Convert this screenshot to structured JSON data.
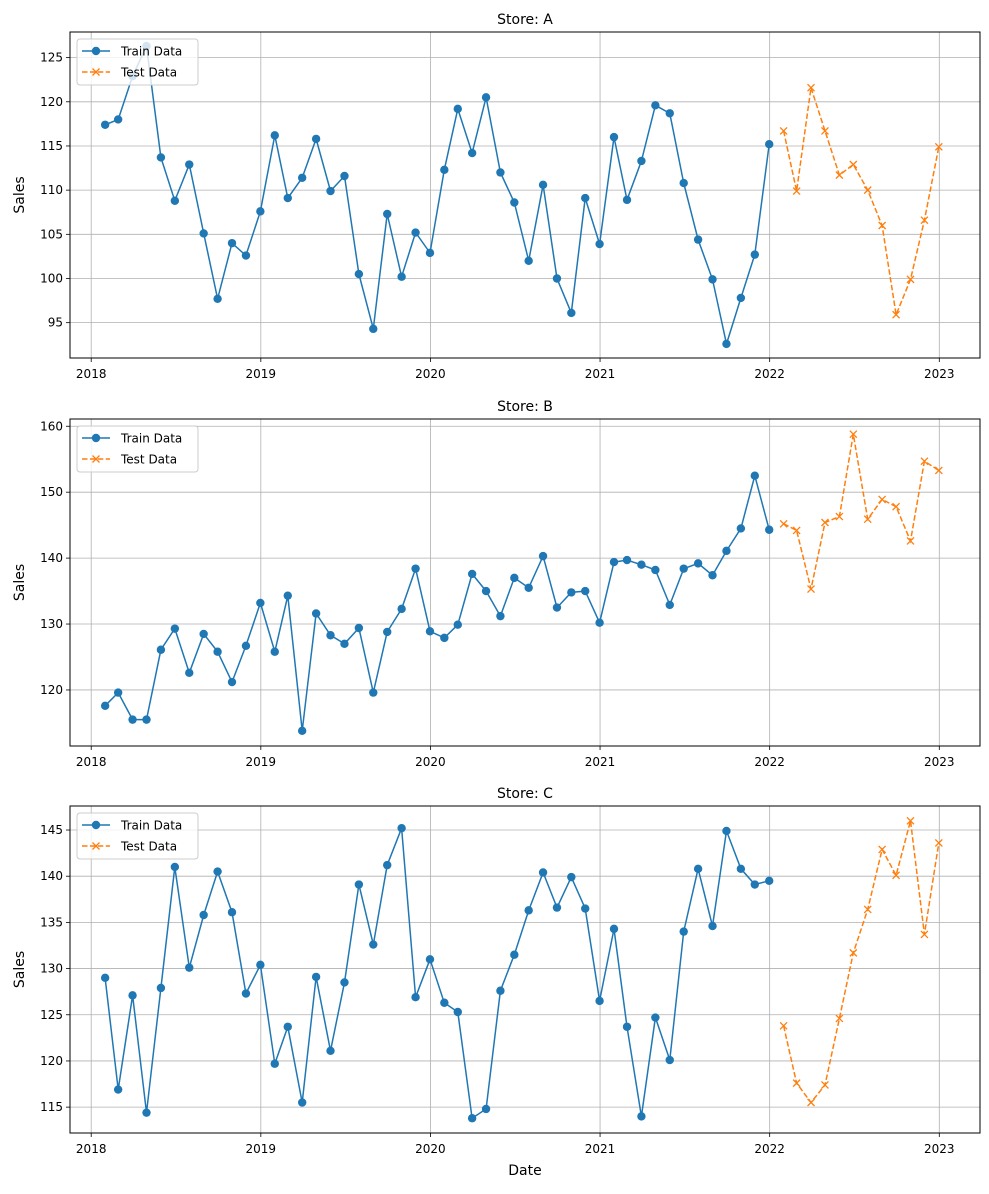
{
  "chart_data": [
    {
      "type": "line",
      "title": "Store: A",
      "xlabel": "",
      "ylabel": "Sales",
      "xlim": [
        2017.875,
        2023.24
      ],
      "ylim": [
        91.0,
        127.9
      ],
      "yticks": [
        95,
        100,
        105,
        110,
        115,
        120,
        125
      ],
      "xticks": [
        2018,
        2019,
        2020,
        2021,
        2022,
        2023
      ],
      "grid": true,
      "legend": {
        "position": "top-left",
        "entries": [
          "Train Data",
          "Test Data"
        ]
      },
      "series": [
        {
          "name": "Train Data",
          "style": "solid-circle",
          "color": "#1f77b4",
          "x_start": "2018-01-31",
          "frequency": "monthly",
          "values": [
            117.4,
            118.0,
            122.9,
            126.3,
            113.7,
            108.8,
            112.9,
            105.1,
            97.7,
            104.0,
            102.6,
            107.6,
            116.2,
            109.1,
            111.4,
            115.8,
            109.9,
            111.6,
            100.5,
            94.3,
            107.3,
            100.2,
            105.2,
            102.9,
            112.3,
            119.2,
            114.2,
            120.5,
            112.0,
            108.6,
            102.0,
            110.6,
            100.0,
            96.1,
            109.1,
            103.9,
            116.0,
            108.9,
            113.3,
            119.6,
            118.7,
            110.8,
            104.4,
            99.9,
            92.6,
            97.8,
            102.7,
            115.2
          ]
        },
        {
          "name": "Test Data",
          "style": "dashed-x",
          "color": "#ff7f0e",
          "x_start": "2022-01-31",
          "frequency": "monthly",
          "values": [
            116.7,
            109.9,
            121.6,
            116.7,
            111.7,
            112.9,
            110.0,
            106.0,
            95.9,
            99.9,
            106.6,
            114.9
          ]
        }
      ]
    },
    {
      "type": "line",
      "title": "Store: B",
      "xlabel": "",
      "ylabel": "Sales",
      "xlim": [
        2017.875,
        2023.24
      ],
      "ylim": [
        111.5,
        161.1
      ],
      "yticks": [
        120,
        130,
        140,
        150,
        160
      ],
      "xticks": [
        2018,
        2019,
        2020,
        2021,
        2022,
        2023
      ],
      "grid": true,
      "legend": {
        "position": "top-left",
        "entries": [
          "Train Data",
          "Test Data"
        ]
      },
      "series": [
        {
          "name": "Train Data",
          "style": "solid-circle",
          "color": "#1f77b4",
          "x_start": "2018-01-31",
          "frequency": "monthly",
          "values": [
            117.6,
            119.6,
            115.5,
            115.5,
            126.1,
            129.3,
            122.6,
            128.5,
            125.8,
            121.2,
            126.7,
            133.2,
            125.8,
            134.3,
            113.8,
            131.6,
            128.3,
            127.0,
            129.4,
            119.6,
            128.8,
            132.3,
            138.4,
            128.9,
            127.9,
            129.9,
            137.6,
            135.0,
            131.2,
            137.0,
            135.5,
            140.3,
            132.5,
            134.8,
            135.0,
            130.2,
            139.4,
            139.7,
            139.0,
            138.2,
            132.9,
            138.4,
            139.2,
            137.4,
            141.1,
            144.5,
            152.5,
            144.3
          ]
        },
        {
          "name": "Test Data",
          "style": "dashed-x",
          "color": "#ff7f0e",
          "x_start": "2022-01-31",
          "frequency": "monthly",
          "values": [
            145.2,
            144.2,
            135.3,
            145.4,
            146.3,
            158.8,
            145.9,
            148.9,
            147.8,
            142.6,
            154.7,
            153.3
          ]
        }
      ]
    },
    {
      "type": "line",
      "title": "Store: C",
      "xlabel": "Date",
      "ylabel": "Sales",
      "xlim": [
        2017.875,
        2023.24
      ],
      "ylim": [
        112.2,
        147.6
      ],
      "yticks": [
        115,
        120,
        125,
        130,
        135,
        140,
        145
      ],
      "xticks": [
        2018,
        2019,
        2020,
        2021,
        2022,
        2023
      ],
      "grid": true,
      "legend": {
        "position": "top-left",
        "entries": [
          "Train Data",
          "Test Data"
        ]
      },
      "series": [
        {
          "name": "Train Data",
          "style": "solid-circle",
          "color": "#1f77b4",
          "x_start": "2018-01-31",
          "frequency": "monthly",
          "values": [
            129.0,
            116.9,
            127.1,
            114.4,
            127.9,
            141.0,
            130.1,
            135.8,
            140.5,
            136.1,
            127.3,
            130.4,
            119.7,
            123.7,
            115.5,
            129.1,
            121.1,
            128.5,
            139.1,
            132.6,
            141.2,
            145.2,
            126.9,
            131.0,
            126.3,
            125.3,
            113.8,
            114.8,
            127.6,
            131.5,
            136.3,
            140.4,
            136.6,
            139.9,
            136.5,
            126.5,
            134.3,
            123.7,
            114.0,
            124.7,
            120.1,
            134.0,
            140.8,
            134.6,
            144.9,
            140.8,
            139.1,
            139.5
          ]
        },
        {
          "name": "Test Data",
          "style": "dashed-x",
          "color": "#ff7f0e",
          "x_start": "2022-01-31",
          "frequency": "monthly",
          "values": [
            123.8,
            117.6,
            115.5,
            117.4,
            124.6,
            131.7,
            136.4,
            142.9,
            140.1,
            146.0,
            133.7,
            143.6
          ]
        }
      ]
    }
  ]
}
